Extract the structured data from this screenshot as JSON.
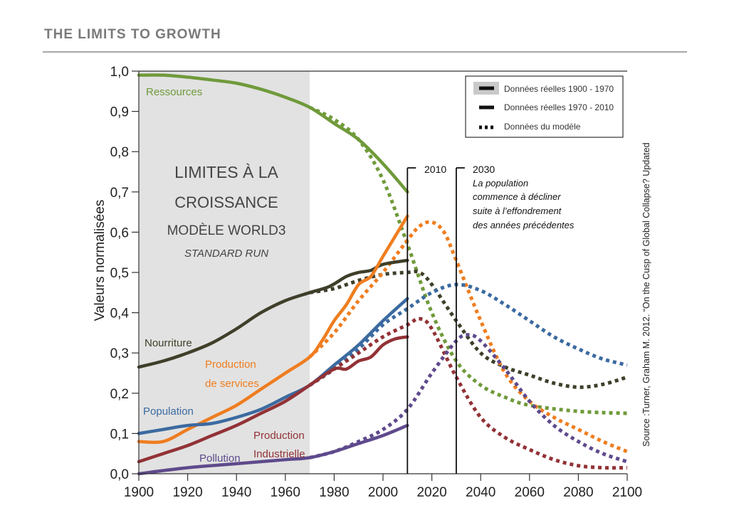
{
  "page": {
    "title": "THE LIMITS TO GROWTH"
  },
  "chart_data": {
    "type": "line",
    "title": "Limites à la croissance — Modèle World3 — Standard Run",
    "inset_title": [
      "LIMITES À LA",
      "CROISSANCE",
      "MODÈLE WORLD3",
      "STANDARD RUN"
    ],
    "xlabel": "",
    "ylabel": "Valeurs normalisées",
    "xlim": [
      1900,
      2100
    ],
    "ylim": [
      0.0,
      1.0
    ],
    "xticks": [
      1900,
      1920,
      1940,
      1960,
      1980,
      2000,
      2020,
      2040,
      2060,
      2080,
      2100
    ],
    "yticks": [
      0.0,
      0.1,
      0.2,
      0.3,
      0.4,
      0.5,
      0.6,
      0.7,
      0.8,
      0.9,
      1.0
    ],
    "ytick_labels": [
      "0,0",
      "0,1",
      "0,2",
      "0,3",
      "0,4",
      "0,5",
      "0,6",
      "0,7",
      "0,8",
      "0,9",
      "1,0"
    ],
    "grid": false,
    "shaded_region": {
      "from": 1900,
      "to": 1970,
      "color": "#e2e2e2"
    },
    "markers": [
      {
        "year": 2010,
        "label": "2010"
      },
      {
        "year": 2030,
        "label": "2030",
        "note": [
          "La population",
          "commence à décliner",
          "suite à l’effondrement",
          "des années précédentes"
        ]
      }
    ],
    "legend": {
      "position": "top-right",
      "entries": [
        "Données réelles 1900 - 1970",
        "Données réelles 1970 - 2010",
        "Données du modèle"
      ]
    },
    "source": "Source :Turner, Graham M. 2012. “On the Cusp of Global Collapse? Updated",
    "series": [
      {
        "name": "Ressources",
        "color": "#6f9a3a",
        "observed": [
          [
            1900,
            0.99
          ],
          [
            1910,
            0.99
          ],
          [
            1920,
            0.985
          ],
          [
            1930,
            0.978
          ],
          [
            1940,
            0.97
          ],
          [
            1950,
            0.955
          ],
          [
            1960,
            0.935
          ],
          [
            1970,
            0.91
          ],
          [
            1980,
            0.87
          ],
          [
            1990,
            0.83
          ],
          [
            2000,
            0.77
          ],
          [
            2010,
            0.7
          ]
        ],
        "model": [
          [
            1970,
            0.91
          ],
          [
            1980,
            0.88
          ],
          [
            1990,
            0.83
          ],
          [
            2000,
            0.73
          ],
          [
            2010,
            0.57
          ],
          [
            2020,
            0.4
          ],
          [
            2030,
            0.28
          ],
          [
            2040,
            0.22
          ],
          [
            2050,
            0.19
          ],
          [
            2060,
            0.17
          ],
          [
            2080,
            0.155
          ],
          [
            2100,
            0.15
          ]
        ]
      },
      {
        "name": "Nourriture",
        "color": "#3f3f2a",
        "observed": [
          [
            1900,
            0.265
          ],
          [
            1910,
            0.28
          ],
          [
            1920,
            0.3
          ],
          [
            1930,
            0.325
          ],
          [
            1940,
            0.36
          ],
          [
            1950,
            0.4
          ],
          [
            1960,
            0.43
          ],
          [
            1970,
            0.45
          ],
          [
            1978,
            0.465
          ],
          [
            1985,
            0.49
          ],
          [
            1990,
            0.5
          ],
          [
            1995,
            0.505
          ],
          [
            2000,
            0.52
          ],
          [
            2010,
            0.53
          ]
        ],
        "model": [
          [
            1970,
            0.45
          ],
          [
            1980,
            0.46
          ],
          [
            1990,
            0.48
          ],
          [
            2000,
            0.495
          ],
          [
            2010,
            0.5
          ],
          [
            2015,
            0.5
          ],
          [
            2020,
            0.47
          ],
          [
            2030,
            0.38
          ],
          [
            2040,
            0.3
          ],
          [
            2050,
            0.265
          ],
          [
            2060,
            0.245
          ],
          [
            2070,
            0.225
          ],
          [
            2080,
            0.215
          ],
          [
            2090,
            0.222
          ],
          [
            2100,
            0.24
          ]
        ]
      },
      {
        "name": "Production de services",
        "color": "#ef7d1f",
        "observed": [
          [
            1900,
            0.08
          ],
          [
            1910,
            0.08
          ],
          [
            1920,
            0.11
          ],
          [
            1930,
            0.14
          ],
          [
            1940,
            0.17
          ],
          [
            1950,
            0.21
          ],
          [
            1960,
            0.25
          ],
          [
            1970,
            0.29
          ],
          [
            1975,
            0.33
          ],
          [
            1980,
            0.38
          ],
          [
            1985,
            0.42
          ],
          [
            1990,
            0.47
          ],
          [
            1995,
            0.49
          ],
          [
            2000,
            0.54
          ],
          [
            2005,
            0.59
          ],
          [
            2010,
            0.64
          ]
        ],
        "model": [
          [
            1970,
            0.29
          ],
          [
            1980,
            0.35
          ],
          [
            1990,
            0.43
          ],
          [
            2000,
            0.5
          ],
          [
            2010,
            0.58
          ],
          [
            2015,
            0.615
          ],
          [
            2020,
            0.625
          ],
          [
            2025,
            0.6
          ],
          [
            2030,
            0.53
          ],
          [
            2040,
            0.38
          ],
          [
            2050,
            0.25
          ],
          [
            2060,
            0.18
          ],
          [
            2070,
            0.14
          ],
          [
            2080,
            0.11
          ],
          [
            2090,
            0.08
          ],
          [
            2100,
            0.055
          ]
        ]
      },
      {
        "name": "Population",
        "color": "#3b6aa0",
        "observed": [
          [
            1900,
            0.1
          ],
          [
            1910,
            0.11
          ],
          [
            1920,
            0.12
          ],
          [
            1930,
            0.125
          ],
          [
            1940,
            0.14
          ],
          [
            1950,
            0.16
          ],
          [
            1960,
            0.19
          ],
          [
            1970,
            0.22
          ],
          [
            1980,
            0.27
          ],
          [
            1990,
            0.32
          ],
          [
            2000,
            0.38
          ],
          [
            2010,
            0.435
          ]
        ],
        "model": [
          [
            1970,
            0.22
          ],
          [
            1980,
            0.26
          ],
          [
            1990,
            0.31
          ],
          [
            2000,
            0.37
          ],
          [
            2010,
            0.41
          ],
          [
            2020,
            0.45
          ],
          [
            2030,
            0.47
          ],
          [
            2040,
            0.455
          ],
          [
            2050,
            0.42
          ],
          [
            2060,
            0.38
          ],
          [
            2070,
            0.34
          ],
          [
            2080,
            0.31
          ],
          [
            2090,
            0.285
          ],
          [
            2100,
            0.27
          ]
        ]
      },
      {
        "name": "Production Industrielle",
        "color": "#923236",
        "observed": [
          [
            1900,
            0.03
          ],
          [
            1910,
            0.05
          ],
          [
            1920,
            0.07
          ],
          [
            1930,
            0.095
          ],
          [
            1940,
            0.12
          ],
          [
            1950,
            0.15
          ],
          [
            1960,
            0.18
          ],
          [
            1970,
            0.22
          ],
          [
            1980,
            0.26
          ],
          [
            1985,
            0.26
          ],
          [
            1990,
            0.28
          ],
          [
            1995,
            0.29
          ],
          [
            2000,
            0.32
          ],
          [
            2005,
            0.335
          ],
          [
            2010,
            0.34
          ]
        ],
        "model": [
          [
            1970,
            0.22
          ],
          [
            1980,
            0.26
          ],
          [
            1990,
            0.3
          ],
          [
            2000,
            0.34
          ],
          [
            2010,
            0.37
          ],
          [
            2015,
            0.385
          ],
          [
            2020,
            0.36
          ],
          [
            2030,
            0.24
          ],
          [
            2040,
            0.14
          ],
          [
            2050,
            0.09
          ],
          [
            2060,
            0.06
          ],
          [
            2070,
            0.035
          ],
          [
            2080,
            0.02
          ],
          [
            2090,
            0.015
          ],
          [
            2100,
            0.015
          ]
        ]
      },
      {
        "name": "Pollution",
        "color": "#5e4a8c",
        "observed": [
          [
            1900,
            0.0
          ],
          [
            1920,
            0.015
          ],
          [
            1940,
            0.025
          ],
          [
            1960,
            0.035
          ],
          [
            1970,
            0.04
          ],
          [
            1980,
            0.055
          ],
          [
            1990,
            0.075
          ],
          [
            2000,
            0.095
          ],
          [
            2010,
            0.12
          ]
        ],
        "model": [
          [
            1970,
            0.04
          ],
          [
            1980,
            0.055
          ],
          [
            1990,
            0.08
          ],
          [
            2000,
            0.11
          ],
          [
            2010,
            0.16
          ],
          [
            2020,
            0.25
          ],
          [
            2030,
            0.33
          ],
          [
            2035,
            0.345
          ],
          [
            2040,
            0.33
          ],
          [
            2050,
            0.26
          ],
          [
            2060,
            0.18
          ],
          [
            2070,
            0.12
          ],
          [
            2080,
            0.08
          ],
          [
            2090,
            0.05
          ],
          [
            2100,
            0.03
          ]
        ]
      }
    ],
    "series_labels": [
      "Ressources",
      "Nourriture",
      "Production",
      "de services",
      "Population",
      "Production",
      "Industrielle",
      "Pollution"
    ]
  }
}
